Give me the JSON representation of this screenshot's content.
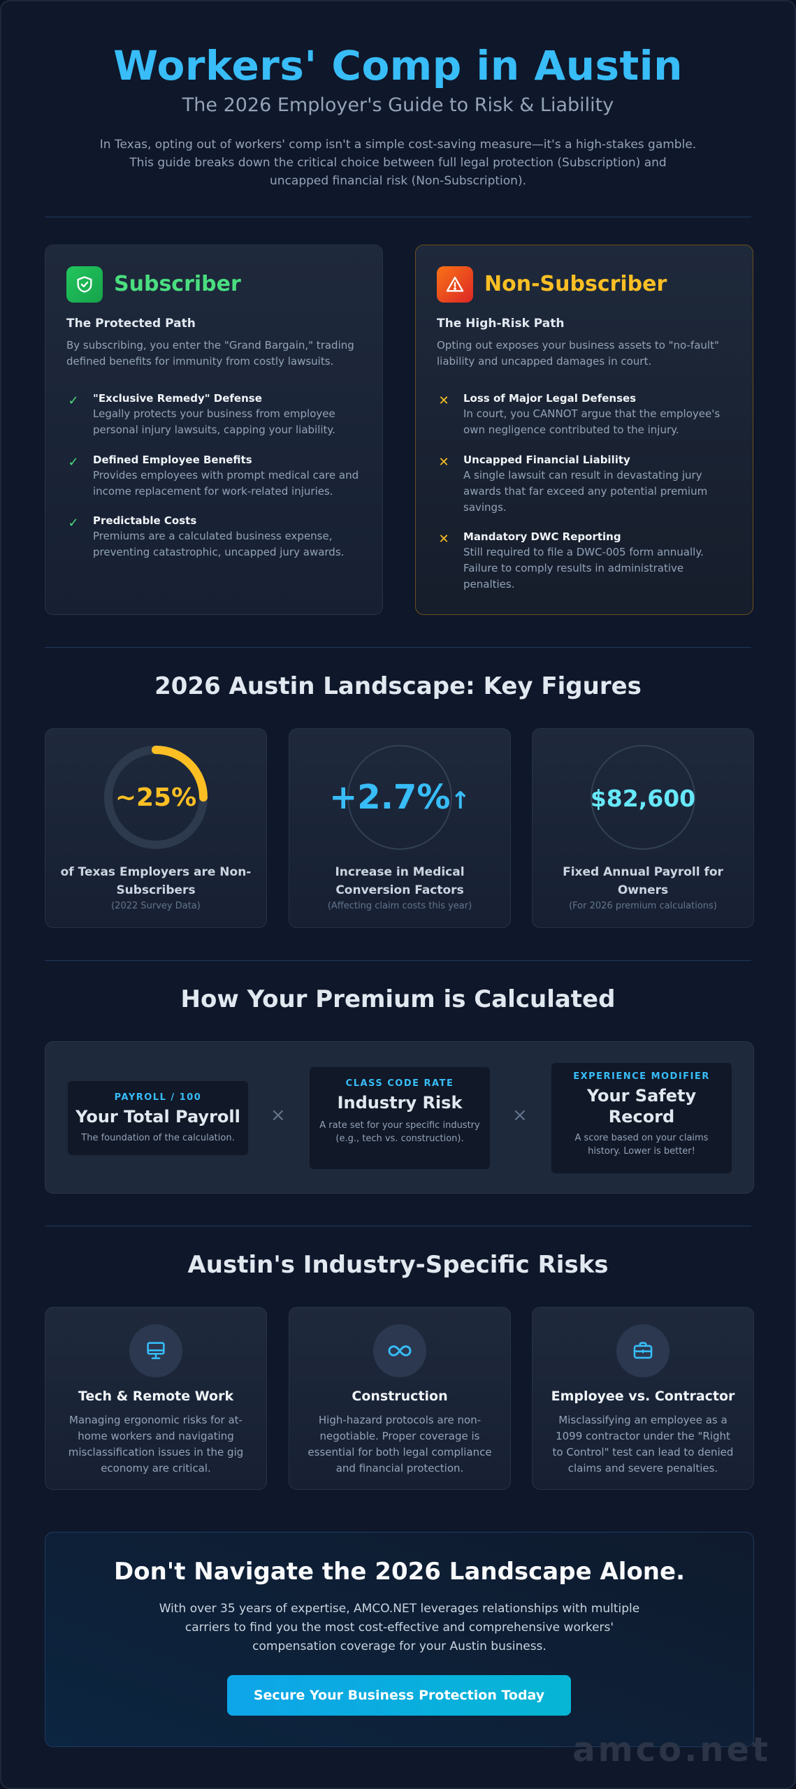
{
  "header": {
    "title": "Workers' Comp in Austin",
    "subtitle": "The 2026 Employer's Guide to Risk & Liability",
    "intro": "In Texas, opting out of workers' comp isn't a simple cost-saving measure—it's a high-stakes gamble. This guide breaks down the critical choice between full legal protection (Subscription) and uncapped financial risk (Non-Subscription)."
  },
  "colors": {
    "accent": "#38bdf8",
    "subscriber": "#4ade80",
    "non_subscriber": "#fbbf24",
    "ring_track": "#2d3a4e"
  },
  "subscriber": {
    "icon": "shield-check-icon",
    "title": "Subscriber",
    "subtitle": "The Protected Path",
    "description": "By subscribing, you enter the \"Grand Bargain,\" trading defined benefits for immunity from costly lawsuits.",
    "items": [
      {
        "icon": "check-icon",
        "title": "\"Exclusive Remedy\" Defense",
        "text": "Legally protects your business from employee personal injury lawsuits, capping your liability."
      },
      {
        "icon": "check-icon",
        "title": "Defined Employee Benefits",
        "text": "Provides employees with prompt medical care and income replacement for work-related injuries."
      },
      {
        "icon": "check-icon",
        "title": "Predictable Costs",
        "text": "Premiums are a calculated business expense, preventing catastrophic, uncapped jury awards."
      }
    ]
  },
  "non_subscriber": {
    "icon": "warning-triangle-icon",
    "title": "Non-Subscriber",
    "subtitle": "The High-Risk Path",
    "description": "Opting out exposes your business assets to \"no-fault\" liability and uncapped damages in court.",
    "items": [
      {
        "icon": "x-icon",
        "title": "Loss of Major Legal Defenses",
        "text": "In court, you CANNOT argue that the employee's own negligence contributed to the injury."
      },
      {
        "icon": "x-icon",
        "title": "Uncapped Financial Liability",
        "text": "A single lawsuit can result in devastating jury awards that far exceed any potential premium savings."
      },
      {
        "icon": "x-icon",
        "title": "Mandatory DWC Reporting",
        "text": "Still required to file a DWC-005 form annually. Failure to comply results in administrative penalties."
      }
    ]
  },
  "figures": {
    "heading": "2026 Austin Landscape: Key Figures",
    "stats": [
      {
        "value": "~25%",
        "ring_fraction": 0.25,
        "label": "of Texas Employers are Non-Subscribers",
        "note": "(2022 Survey Data)"
      },
      {
        "value": "+2.7%",
        "arrow": "↑",
        "label": "Increase in Medical Conversion Factors",
        "note": "(Affecting claim costs this year)"
      },
      {
        "value": "$82,600",
        "label": "Fixed Annual Payroll for Owners",
        "note": "(For 2026 premium calculations)"
      }
    ]
  },
  "premium": {
    "heading": "How Your Premium is Calculated",
    "operator": "×",
    "factors": [
      {
        "kicker": "PAYROLL / 100",
        "name": "Your Total Payroll",
        "desc": "The foundation of the calculation."
      },
      {
        "kicker": "CLASS CODE RATE",
        "name": "Industry Risk",
        "desc": "A rate set for your specific industry (e.g., tech vs. construction)."
      },
      {
        "kicker": "EXPERIENCE MODIFIER",
        "name": "Your Safety Record",
        "desc": "A score based on your claims history. Lower is better!"
      }
    ]
  },
  "risks": {
    "heading": "Austin's Industry-Specific Risks",
    "items": [
      {
        "icon": "monitor-icon",
        "title": "Tech & Remote Work",
        "desc": "Managing ergonomic risks for at-home workers and navigating misclassification issues in the gig economy are critical."
      },
      {
        "icon": "infinity-icon",
        "title": "Construction",
        "desc": "High-hazard protocols are non-negotiable. Proper coverage is essential for both legal compliance and financial protection."
      },
      {
        "icon": "briefcase-icon",
        "title": "Employee vs. Contractor",
        "desc": "Misclassifying an employee as a 1099 contractor under the \"Right to Control\" test can lead to denied claims and severe penalties."
      }
    ]
  },
  "cta": {
    "title": "Don't Navigate the 2026 Landscape Alone.",
    "text": "With over 35 years of expertise, AMCO.NET leverages relationships with multiple carriers to find you the most cost-effective and comprehensive workers' compensation coverage for your Austin business.",
    "button": "Secure Your Business Protection Today"
  },
  "watermark": "amco.net"
}
